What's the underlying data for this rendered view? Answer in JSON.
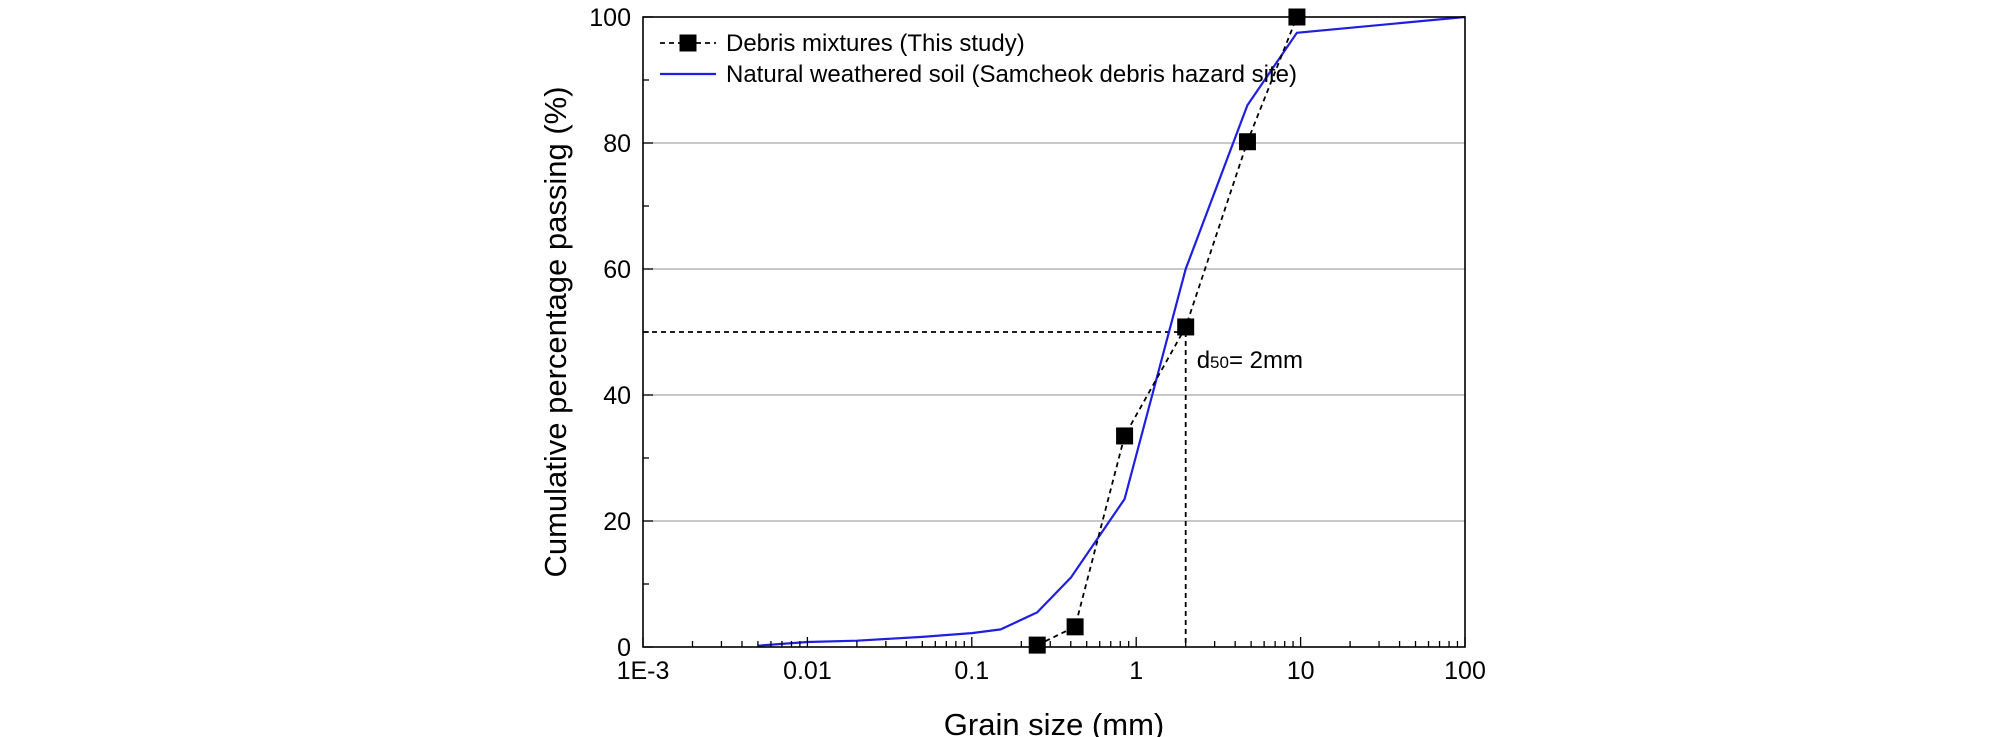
{
  "chart_data": {
    "type": "line",
    "xlabel": "Grain size (mm)",
    "ylabel": "Cumulative percentage passing (%)",
    "xscale": "log",
    "xlim": [
      0.001,
      100
    ],
    "ylim": [
      0,
      100
    ],
    "x_tick_labels": [
      "1E-3",
      "0.01",
      "0.1",
      "1",
      "10",
      "100"
    ],
    "y_tick_labels": [
      "0",
      "20",
      "40",
      "60",
      "80",
      "100"
    ],
    "grid": "horizontal",
    "legend_position": "top-left",
    "series": [
      {
        "name": "Debris mixtures (This study)",
        "style": "dashed-with-square-markers",
        "color": "#000000",
        "x": [
          0.25,
          0.425,
          0.85,
          2.0,
          4.75,
          9.5
        ],
        "y": [
          0.3,
          3.2,
          33.5,
          50.8,
          80.2,
          100
        ]
      },
      {
        "name": "Natural weathered soil (Samcheok debris hazard site)",
        "style": "solid",
        "color": "#1f1fe0",
        "x": [
          0.005,
          0.007,
          0.01,
          0.02,
          0.05,
          0.1,
          0.15,
          0.25,
          0.4,
          0.85,
          2.0,
          4.75,
          9.5,
          100
        ],
        "y": [
          0.2,
          0.5,
          0.8,
          1.0,
          1.6,
          2.2,
          2.8,
          5.5,
          11.0,
          23.5,
          60.0,
          86.0,
          97.5,
          100
        ]
      }
    ],
    "annotation": {
      "text_prefix": "d",
      "text_subscript": "50",
      "text_suffix": "= 2mm",
      "x": 2,
      "y": 50
    }
  }
}
